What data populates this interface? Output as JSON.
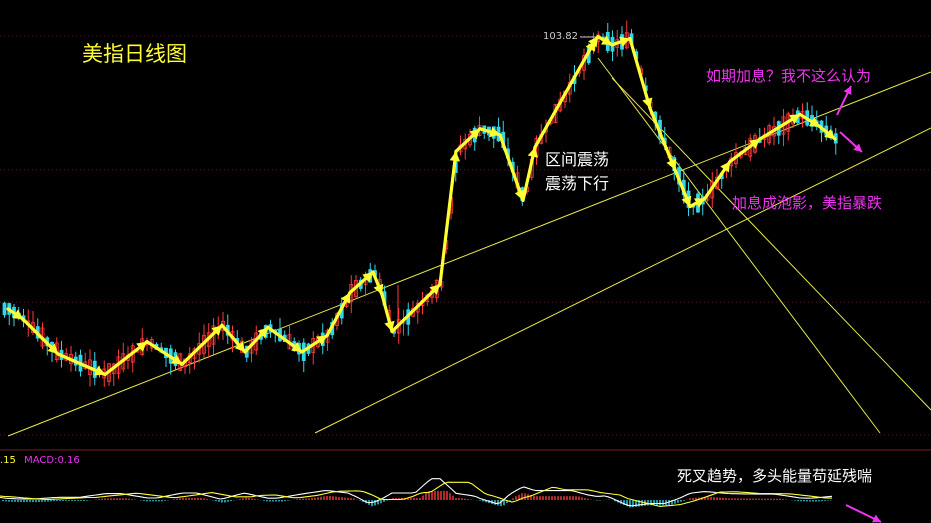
{
  "chart_data": {
    "type": "candlestick",
    "title": "美指日线图",
    "colors": {
      "up": "#ff3b3b",
      "down": "#33d6e6",
      "trend": "#ffff33",
      "annotation": "#ee33ee",
      "background": "#000000"
    },
    "price_range": [
      85,
      106
    ],
    "peak_label": "103.82",
    "annotations": {
      "range_line1": "区间震荡",
      "range_line2": "震荡下行",
      "hike_question": "如期加息？我不这么认为",
      "bubble_crash": "加息成泡影，美指暴跌",
      "death_cross": "死叉趋势，多头能量苟延残喘"
    },
    "macd": {
      "value1": ".15",
      "name": "MACD:0.16"
    },
    "swing_path": [
      91.4,
      90.9,
      89.2,
      88.2,
      89.8,
      88.7,
      90.6,
      89.3,
      90.5,
      89.3,
      90.1,
      92.2,
      93.2,
      92.1,
      90.3,
      92.6,
      99.1,
      100.2,
      99.9,
      96.7,
      99.3,
      104.5,
      104.7,
      104.3,
      104.6,
      101.2,
      98.2,
      96.4,
      96.8,
      98.6,
      99.7,
      100.9,
      100.3,
      99.7
    ]
  }
}
